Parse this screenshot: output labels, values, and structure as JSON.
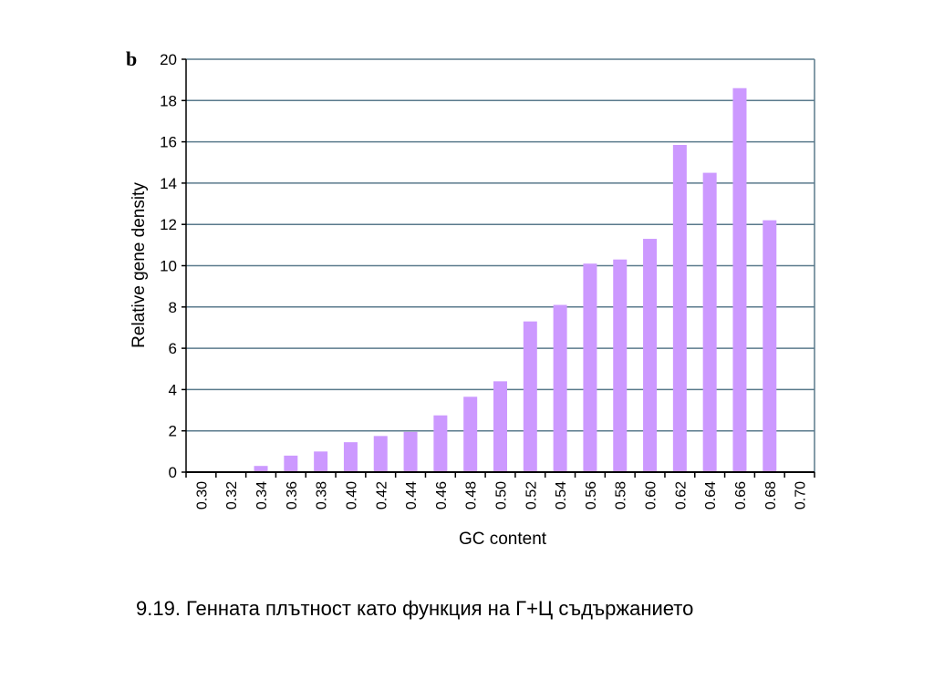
{
  "panel_label": "b",
  "caption": "9.19. Генната плътност като функция на Г+Ц съдържанието",
  "chart_data": {
    "type": "bar",
    "categories": [
      "0.30",
      "0.32",
      "0.34",
      "0.36",
      "0.38",
      "0.40",
      "0.42",
      "0.44",
      "0.46",
      "0.48",
      "0.50",
      "0.52",
      "0.54",
      "0.56",
      "0.58",
      "0.60",
      "0.62",
      "0.64",
      "0.66",
      "0.68",
      "0.70"
    ],
    "values": [
      0,
      0,
      0.3,
      0.8,
      1.0,
      1.45,
      1.75,
      1.95,
      2.75,
      3.65,
      4.4,
      7.3,
      8.1,
      10.1,
      10.3,
      11.3,
      15.85,
      14.5,
      18.6,
      12.2,
      0
    ],
    "xlabel": "GC content",
    "ylabel": "Relative gene density",
    "ylim": [
      0,
      20
    ],
    "yticks": [
      "0",
      "2",
      "4",
      "6",
      "8",
      "10",
      "12",
      "14",
      "16",
      "18",
      "20"
    ],
    "grid": true,
    "colors": {
      "bar": "#cc99ff",
      "grid": "#5a7a8c",
      "axis": "#000000"
    }
  }
}
